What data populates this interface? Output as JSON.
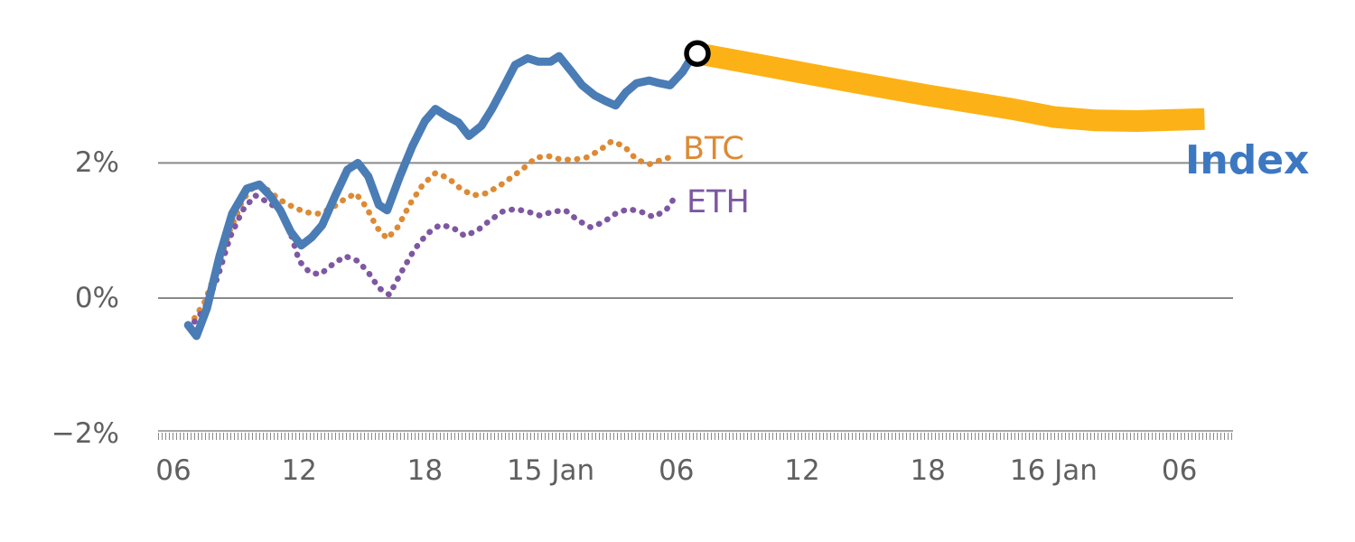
{
  "chart_data": {
    "type": "line",
    "title": "",
    "xlabel": "",
    "ylabel": "",
    "x_unit": "hours (ticks every 6h across two days, midnights labeled 15 Jan / 16 Jan)",
    "x_domain": [
      5.3,
      56.5
    ],
    "ylim_percent": [
      -2.4,
      4.1
    ],
    "grid": "horizontal-only",
    "legend_position": "inline-labels-right-of-lines",
    "legend": {
      "index": "Index",
      "btc": "BTC",
      "eth": "ETH"
    },
    "colors": {
      "index_line": "#4a7cb5",
      "index_label": "#3c78c2",
      "btc": "#dd8a35",
      "eth": "#7e57a2",
      "forecast_band": "#fcb216",
      "grid": "#8a8a8a",
      "tick_text": "#606060",
      "marker_stroke": "#000000",
      "marker_fill": "#ffffff"
    },
    "y_ticks": [
      {
        "value": 2,
        "label": "2%"
      },
      {
        "value": 0,
        "label": "0%"
      },
      {
        "value": -2,
        "label": "−2%"
      }
    ],
    "x_ticks": [
      {
        "value": 6,
        "label": "06"
      },
      {
        "value": 12,
        "label": "12"
      },
      {
        "value": 18,
        "label": "18"
      },
      {
        "value": 24,
        "label": "15 Jan"
      },
      {
        "value": 30,
        "label": "06"
      },
      {
        "value": 36,
        "label": "12"
      },
      {
        "value": 42,
        "label": "18"
      },
      {
        "value": 48,
        "label": "16 Jan"
      },
      {
        "value": 54,
        "label": "06"
      }
    ],
    "marker": {
      "x": 31.0,
      "y": 3.62,
      "shape": "circle",
      "fill": "#ffffff",
      "stroke": "#000000"
    },
    "series": [
      {
        "name": "Index forecast",
        "data_name": "index-forecast-band",
        "style": "band",
        "color": "#fcb216",
        "width": 24,
        "points": [
          [
            31.0,
            3.62
          ],
          [
            34,
            3.45
          ],
          [
            38,
            3.22
          ],
          [
            42,
            3.0
          ],
          [
            46,
            2.8
          ],
          [
            48,
            2.68
          ],
          [
            50,
            2.63
          ],
          [
            52,
            2.62
          ],
          [
            55.2,
            2.65
          ]
        ]
      },
      {
        "name": "BTC",
        "data_name": "btc-line",
        "style": "dotted",
        "color": "#dd8a35",
        "width": 6.5,
        "points": [
          [
            7.0,
            -0.3
          ],
          [
            7.5,
            -0.05
          ],
          [
            8.1,
            0.45
          ],
          [
            8.7,
            1.0
          ],
          [
            9.3,
            1.45
          ],
          [
            9.9,
            1.68
          ],
          [
            10.5,
            1.6
          ],
          [
            11.1,
            1.45
          ],
          [
            11.7,
            1.35
          ],
          [
            12.3,
            1.27
          ],
          [
            12.9,
            1.25
          ],
          [
            13.5,
            1.32
          ],
          [
            14.1,
            1.45
          ],
          [
            14.7,
            1.55
          ],
          [
            15.2,
            1.35
          ],
          [
            15.7,
            1.05
          ],
          [
            16.2,
            0.88
          ],
          [
            16.7,
            1.05
          ],
          [
            17.3,
            1.4
          ],
          [
            17.9,
            1.68
          ],
          [
            18.5,
            1.85
          ],
          [
            19.1,
            1.78
          ],
          [
            19.7,
            1.62
          ],
          [
            20.3,
            1.52
          ],
          [
            20.9,
            1.55
          ],
          [
            21.5,
            1.65
          ],
          [
            22.1,
            1.78
          ],
          [
            22.7,
            1.92
          ],
          [
            23.3,
            2.08
          ],
          [
            23.9,
            2.1
          ],
          [
            24.5,
            2.05
          ],
          [
            25.1,
            2.05
          ],
          [
            25.7,
            2.08
          ],
          [
            26.3,
            2.18
          ],
          [
            26.9,
            2.32
          ],
          [
            27.5,
            2.25
          ],
          [
            28.1,
            2.05
          ],
          [
            28.7,
            1.98
          ],
          [
            29.3,
            2.05
          ],
          [
            29.9,
            2.1
          ]
        ]
      },
      {
        "name": "ETH",
        "data_name": "eth-line",
        "style": "dotted",
        "color": "#7e57a2",
        "width": 6.5,
        "points": [
          [
            7.0,
            -0.35
          ],
          [
            7.5,
            -0.15
          ],
          [
            8.1,
            0.3
          ],
          [
            8.7,
            0.9
          ],
          [
            9.3,
            1.3
          ],
          [
            9.9,
            1.52
          ],
          [
            10.5,
            1.42
          ],
          [
            11.0,
            1.32
          ],
          [
            11.5,
            1.05
          ],
          [
            12.0,
            0.55
          ],
          [
            12.5,
            0.38
          ],
          [
            13.0,
            0.35
          ],
          [
            13.6,
            0.5
          ],
          [
            14.2,
            0.62
          ],
          [
            14.8,
            0.55
          ],
          [
            15.3,
            0.38
          ],
          [
            15.8,
            0.15
          ],
          [
            16.3,
            0.05
          ],
          [
            16.9,
            0.4
          ],
          [
            17.5,
            0.72
          ],
          [
            18.1,
            0.95
          ],
          [
            18.7,
            1.08
          ],
          [
            19.3,
            1.05
          ],
          [
            19.9,
            0.92
          ],
          [
            20.5,
            1.0
          ],
          [
            21.1,
            1.15
          ],
          [
            21.7,
            1.28
          ],
          [
            22.3,
            1.32
          ],
          [
            22.9,
            1.28
          ],
          [
            23.5,
            1.22
          ],
          [
            24.1,
            1.28
          ],
          [
            24.7,
            1.3
          ],
          [
            25.3,
            1.15
          ],
          [
            25.9,
            1.05
          ],
          [
            26.5,
            1.12
          ],
          [
            27.1,
            1.25
          ],
          [
            27.7,
            1.32
          ],
          [
            28.3,
            1.28
          ],
          [
            28.9,
            1.2
          ],
          [
            29.5,
            1.3
          ],
          [
            29.9,
            1.48
          ]
        ]
      },
      {
        "name": "Index",
        "data_name": "index-line",
        "style": "solid",
        "color": "#4a7cb5",
        "width": 9,
        "points": [
          [
            6.7,
            -0.4
          ],
          [
            7.1,
            -0.56
          ],
          [
            7.6,
            -0.15
          ],
          [
            8.2,
            0.62
          ],
          [
            8.8,
            1.25
          ],
          [
            9.5,
            1.62
          ],
          [
            10.1,
            1.68
          ],
          [
            10.6,
            1.52
          ],
          [
            11.1,
            1.3
          ],
          [
            11.6,
            0.98
          ],
          [
            12.1,
            0.78
          ],
          [
            12.6,
            0.9
          ],
          [
            13.1,
            1.08
          ],
          [
            13.7,
            1.5
          ],
          [
            14.3,
            1.9
          ],
          [
            14.8,
            2.0
          ],
          [
            15.3,
            1.8
          ],
          [
            15.8,
            1.38
          ],
          [
            16.2,
            1.3
          ],
          [
            16.8,
            1.8
          ],
          [
            17.4,
            2.25
          ],
          [
            18.0,
            2.62
          ],
          [
            18.5,
            2.8
          ],
          [
            19.0,
            2.7
          ],
          [
            19.6,
            2.6
          ],
          [
            20.1,
            2.4
          ],
          [
            20.7,
            2.55
          ],
          [
            21.2,
            2.8
          ],
          [
            21.8,
            3.15
          ],
          [
            22.3,
            3.45
          ],
          [
            22.9,
            3.55
          ],
          [
            23.4,
            3.5
          ],
          [
            24.0,
            3.5
          ],
          [
            24.4,
            3.58
          ],
          [
            25.0,
            3.35
          ],
          [
            25.5,
            3.15
          ],
          [
            26.1,
            3.0
          ],
          [
            26.6,
            2.92
          ],
          [
            27.1,
            2.85
          ],
          [
            27.6,
            3.05
          ],
          [
            28.1,
            3.18
          ],
          [
            28.7,
            3.22
          ],
          [
            29.2,
            3.18
          ],
          [
            29.7,
            3.15
          ],
          [
            30.3,
            3.35
          ],
          [
            30.7,
            3.55
          ],
          [
            31.0,
            3.62
          ]
        ]
      }
    ]
  }
}
